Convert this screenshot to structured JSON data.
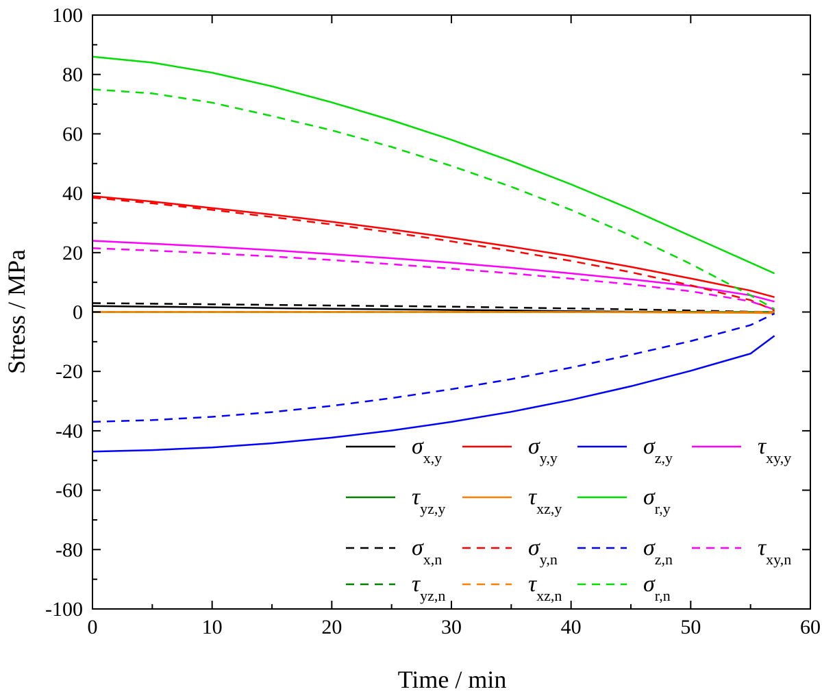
{
  "chart_data": {
    "type": "line",
    "xlabel": "Time / min",
    "ylabel": "Stress / MPa",
    "xlim": [
      0,
      60
    ],
    "ylim": [
      -100,
      100
    ],
    "x_ticks": [
      0,
      10,
      20,
      30,
      40,
      50,
      60
    ],
    "y_ticks": [
      -100,
      -80,
      -60,
      -40,
      -20,
      0,
      20,
      40,
      60,
      80,
      100
    ],
    "x_tick_labels": [
      "0",
      "10",
      "20",
      "30",
      "40",
      "50",
      "60"
    ],
    "y_tick_labels": [
      "-100",
      "-80",
      "-60",
      "-40",
      "-20",
      "0",
      "20",
      "40",
      "60",
      "80",
      "100"
    ],
    "grid": false,
    "legend_position": "bottom-right",
    "x": [
      0,
      5,
      10,
      15,
      20,
      25,
      30,
      35,
      40,
      45,
      50,
      55,
      57
    ],
    "series": [
      {
        "name": "σx,y",
        "symbol": "σ",
        "sub": "x,y",
        "color": "#000000",
        "dash": "solid",
        "values": [
          2,
          1.8,
          1.6,
          1.3,
          1.1,
          0.9,
          0.7,
          0.5,
          0.3,
          0.1,
          0,
          -0.2,
          -0.3
        ]
      },
      {
        "name": "σy,y",
        "symbol": "σ",
        "sub": "y,y",
        "color": "#ff0000",
        "dash": "solid",
        "values": [
          39,
          37.2,
          35,
          32.8,
          30.4,
          27.8,
          25,
          22,
          18.8,
          15.2,
          11.3,
          7.2,
          5
        ]
      },
      {
        "name": "σz,y",
        "symbol": "σ",
        "sub": "z,y",
        "color": "#0000ff",
        "dash": "solid",
        "values": [
          -47,
          -46.5,
          -45.6,
          -44.2,
          -42.3,
          -39.9,
          -37,
          -33.6,
          -29.6,
          -25,
          -19.8,
          -14,
          -8
        ]
      },
      {
        "name": "τxy,y",
        "symbol": "τ",
        "sub": "xy,y",
        "color": "#ff00ff",
        "dash": "solid",
        "values": [
          24,
          23,
          22,
          20.8,
          19.5,
          18.1,
          16.6,
          14.9,
          13,
          11,
          8.8,
          5.6,
          3.5
        ]
      },
      {
        "name": "τyz,y",
        "symbol": "τ",
        "sub": "yz,y",
        "color": "#008000",
        "dash": "solid",
        "values": [
          0,
          0,
          0,
          0,
          0,
          0,
          0,
          0,
          0,
          0,
          0,
          0,
          0
        ]
      },
      {
        "name": "τxz,y",
        "symbol": "τ",
        "sub": "xz,y",
        "color": "#ff8000",
        "dash": "solid",
        "values": [
          0,
          0,
          0,
          0,
          0,
          0,
          0,
          0,
          0,
          -0.1,
          -0.2,
          -0.3,
          -0.4
        ]
      },
      {
        "name": "σr,y",
        "symbol": "σ",
        "sub": "r,y",
        "color": "#00dd00",
        "dash": "solid",
        "values": [
          86,
          84,
          80.6,
          76,
          70.6,
          64.6,
          58,
          50.8,
          43,
          34.6,
          25.6,
          16.6,
          13
        ]
      },
      {
        "name": "σx,n",
        "symbol": "σ",
        "sub": "x,n",
        "color": "#000000",
        "dash": "dash",
        "values": [
          3,
          2.8,
          2.6,
          2.4,
          2.2,
          2,
          1.8,
          1.5,
          1.2,
          0.9,
          0.5,
          0.1,
          0
        ]
      },
      {
        "name": "σy,n",
        "symbol": "σ",
        "sub": "y,n",
        "color": "#ff0000",
        "dash": "dash",
        "values": [
          38.5,
          36.6,
          34.4,
          32,
          29.5,
          26.8,
          23.8,
          20.6,
          17.2,
          13.4,
          9,
          4,
          0.5
        ]
      },
      {
        "name": "σz,n",
        "symbol": "σ",
        "sub": "z,n",
        "color": "#0000ff",
        "dash": "dash",
        "values": [
          -37,
          -36.4,
          -35.3,
          -33.7,
          -31.6,
          -29,
          -26,
          -22.6,
          -18.7,
          -14.4,
          -9.8,
          -4.4,
          -0.5
        ]
      },
      {
        "name": "τxy,n",
        "symbol": "τ",
        "sub": "xy,n",
        "color": "#ff00ff",
        "dash": "dash",
        "values": [
          21.5,
          20.7,
          19.8,
          18.7,
          17.5,
          16.1,
          14.6,
          13,
          11.2,
          9.3,
          7,
          3.6,
          0.8
        ]
      },
      {
        "name": "τyz,n",
        "symbol": "τ",
        "sub": "yz,n",
        "color": "#008000",
        "dash": "dash",
        "values": [
          0,
          0,
          0,
          0,
          0,
          0,
          0,
          0,
          0,
          0,
          0,
          0,
          0
        ]
      },
      {
        "name": "τxz,n",
        "symbol": "τ",
        "sub": "xz,n",
        "color": "#ff8000",
        "dash": "dash",
        "values": [
          0,
          0,
          0,
          0,
          0,
          0,
          0,
          0,
          0,
          0,
          0,
          0,
          0
        ]
      },
      {
        "name": "σr,n",
        "symbol": "σ",
        "sub": "r,n",
        "color": "#00dd00",
        "dash": "dash",
        "values": [
          75,
          73.6,
          70.5,
          66,
          61.2,
          55.6,
          49.2,
          42.2,
          34.4,
          25.8,
          16.2,
          5.6,
          1
        ]
      }
    ]
  }
}
